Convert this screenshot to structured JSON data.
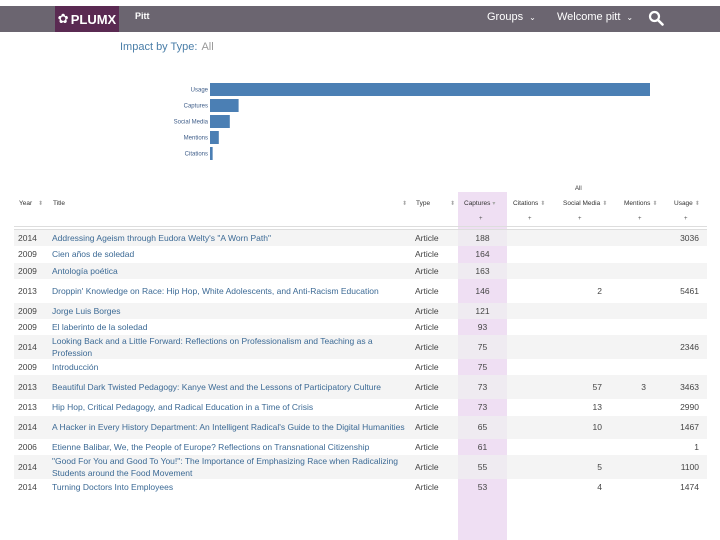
{
  "header": {
    "logo_text": "PLUMX",
    "org": "Pitt",
    "groups_label": "Groups",
    "welcome_label": "Welcome pitt"
  },
  "impact": {
    "title": "Impact by Type:",
    "filter": "All"
  },
  "chart_data": {
    "type": "bar",
    "orientation": "horizontal",
    "categories": [
      "Usage",
      "Captures",
      "Social Media",
      "Mentions",
      "Citations"
    ],
    "values": [
      100,
      6.5,
      4.5,
      2,
      0.6
    ],
    "xlim": [
      0,
      100
    ],
    "title": "",
    "xlabel": "",
    "ylabel": "",
    "color": "#4b7fb4"
  },
  "table": {
    "group_label": "All",
    "headers": {
      "year": "Year",
      "title": "Title",
      "type": "Type",
      "captures": "Captures",
      "citations": "Citations",
      "social": "Social Media",
      "mentions": "Mentions",
      "usage": "Usage"
    },
    "rows": [
      {
        "year": "2014",
        "title": "Addressing Ageism through Eudora Welty's \"A Worn Path\"",
        "type": "Article",
        "captures": "188",
        "citations": "",
        "social": "",
        "mentions": "",
        "usage": "3036"
      },
      {
        "year": "2009",
        "title": "Cien años de soledad",
        "type": "Article",
        "captures": "164",
        "citations": "",
        "social": "",
        "mentions": "",
        "usage": ""
      },
      {
        "year": "2009",
        "title": "Antología poética",
        "type": "Article",
        "captures": "163",
        "citations": "",
        "social": "",
        "mentions": "",
        "usage": ""
      },
      {
        "year": "2013",
        "title": "Droppin' Knowledge on Race: Hip Hop, White Adolescents, and Anti-Racism Education",
        "type": "Article",
        "captures": "146",
        "citations": "",
        "social": "2",
        "mentions": "",
        "usage": "5461"
      },
      {
        "year": "2009",
        "title": "Jorge Luis Borges",
        "type": "Article",
        "captures": "121",
        "citations": "",
        "social": "",
        "mentions": "",
        "usage": ""
      },
      {
        "year": "2009",
        "title": "El laberinto de la soledad",
        "type": "Article",
        "captures": "93",
        "citations": "",
        "social": "",
        "mentions": "",
        "usage": ""
      },
      {
        "year": "2014",
        "title": "Looking Back and a Little Forward: Reflections on Professionalism and Teaching as a Profession",
        "type": "Article",
        "captures": "75",
        "citations": "",
        "social": "",
        "mentions": "",
        "usage": "2346"
      },
      {
        "year": "2009",
        "title": "Introducción",
        "type": "Article",
        "captures": "75",
        "citations": "",
        "social": "",
        "mentions": "",
        "usage": ""
      },
      {
        "year": "2013",
        "title": "Beautiful Dark Twisted Pedagogy: Kanye West and the Lessons of Participatory Culture",
        "type": "Article",
        "captures": "73",
        "citations": "",
        "social": "57",
        "mentions": "3",
        "usage": "3463"
      },
      {
        "year": "2013",
        "title": "Hip Hop, Critical Pedagogy, and Radical Education in a Time of Crisis",
        "type": "Article",
        "captures": "73",
        "citations": "",
        "social": "13",
        "mentions": "",
        "usage": "2990"
      },
      {
        "year": "2014",
        "title": "A Hacker in Every History Department: An Intelligent Radical's Guide to the Digital Humanities",
        "type": "Article",
        "captures": "65",
        "citations": "",
        "social": "10",
        "mentions": "",
        "usage": "1467"
      },
      {
        "year": "2006",
        "title": "Etienne Balibar, We, the People of Europe? Reflections on Transnational Citizenship",
        "type": "Article",
        "captures": "61",
        "citations": "",
        "social": "",
        "mentions": "",
        "usage": "1"
      },
      {
        "year": "2014",
        "title": "\"Good For You and Good To You!\": The Importance of Emphasizing Race when Radicalizing Students around the Food Movement",
        "type": "Article",
        "captures": "55",
        "citations": "",
        "social": "5",
        "mentions": "",
        "usage": "1100"
      },
      {
        "year": "2014",
        "title": "Turning Doctors Into Employees",
        "type": "Article",
        "captures": "53",
        "citations": "",
        "social": "4",
        "mentions": "",
        "usage": "1474"
      }
    ]
  }
}
